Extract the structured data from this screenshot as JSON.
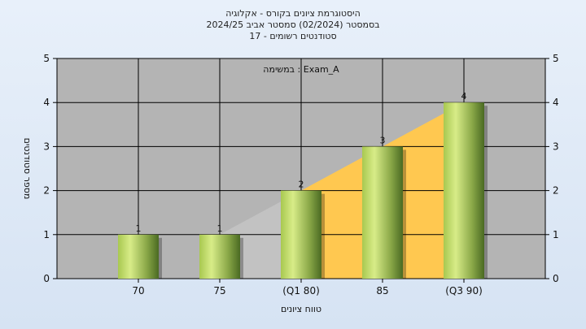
{
  "colors": {
    "plot_background": "#b4b4b4",
    "bar_light": "#c8e06a",
    "bar_dark": "#5a7a2a",
    "area_orange": "#ffc850",
    "area_gray": "#c2c2c2",
    "grid": "#000000"
  },
  "chart_data": {
    "type": "bar",
    "title_lines": [
      "היסטוגרמת ציונים בקורס - אקלוגיה",
      "בסמסטר  (02/2024)  סמסטר אביב 2024/25",
      "סטודנטים רשומים - 17"
    ],
    "annotation": "במשימה : Exam_A",
    "categories": [
      "70",
      "75",
      "(Q1 80)",
      "85",
      "(Q3 90)"
    ],
    "values": [
      1,
      1,
      2,
      3,
      4
    ],
    "area_series": [
      {
        "from_category": 1,
        "to_category": 2,
        "color": "area_gray"
      },
      {
        "from_category": 2,
        "to_category": 4,
        "color": "area_orange"
      }
    ],
    "xlabel": "טווח ציונים",
    "ylabel": "מספר סטודנטים",
    "ylim": [
      0,
      5
    ],
    "yticks": [
      0,
      1,
      2,
      3,
      4,
      5
    ],
    "secondary_y_axis": true,
    "grid": true
  }
}
